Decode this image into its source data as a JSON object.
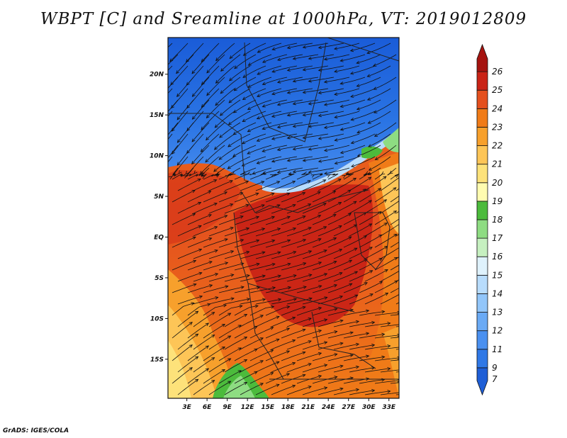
{
  "title": "WBPT [C] and Sreamline at 1000hPa, VT: 2019012809",
  "credit": "GrADS: IGES/COLA",
  "map": {
    "lat_labels": [
      "20N",
      "15N",
      "10N",
      "5N",
      "EQ",
      "5S",
      "10S",
      "15S"
    ],
    "lon_labels": [
      "3E",
      "6E",
      "9E",
      "12E",
      "15E",
      "18E",
      "21E",
      "24E",
      "27E",
      "30E",
      "33E"
    ],
    "lat_values": [
      20,
      15,
      10,
      5,
      0,
      -5,
      -10,
      -15
    ],
    "lon_values": [
      3,
      6,
      9,
      12,
      15,
      18,
      21,
      24,
      27,
      30,
      33
    ],
    "lat_range": [
      -19.8,
      24.5
    ],
    "lon_range": [
      0.2,
      34.5
    ]
  },
  "colorbar": {
    "labels": [
      "7",
      "9",
      "11",
      "12",
      "13",
      "14",
      "15",
      "16",
      "17",
      "18",
      "19",
      "20",
      "21",
      "22",
      "23",
      "24",
      "25",
      "26"
    ],
    "colors": [
      "#1e5ed6",
      "#2f78e6",
      "#4a90f0",
      "#6aaaf5",
      "#92c6fa",
      "#b8dcfc",
      "#dff2fc",
      "#c6f0c0",
      "#8edc82",
      "#4cbb3c",
      "#fffcb0",
      "#fde27a",
      "#fdc557",
      "#f7a02c",
      "#f07b18",
      "#e4501e",
      "#c92316",
      "#a5130f"
    ]
  }
}
